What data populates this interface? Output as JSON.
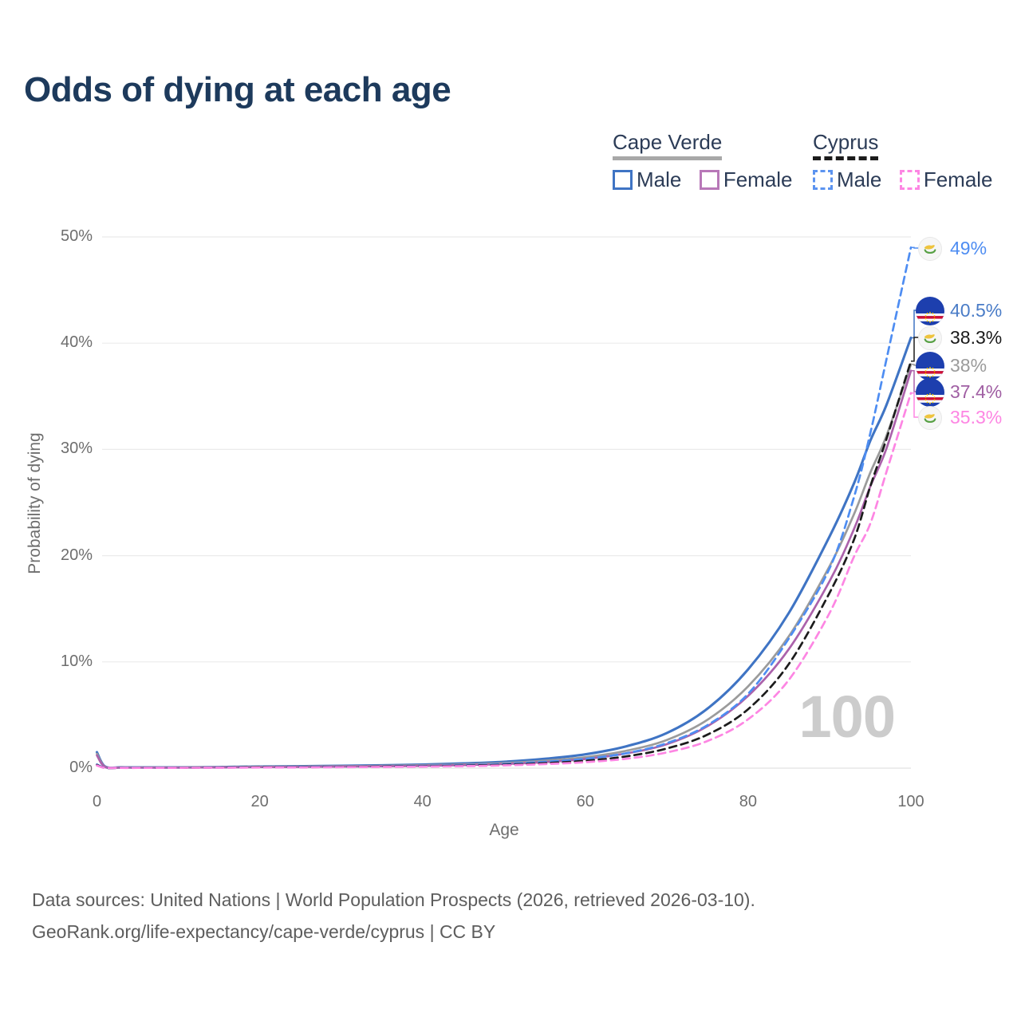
{
  "title": "Odds of dying at each age",
  "legend": {
    "groups": [
      {
        "country": "Cape Verde",
        "line_style": "solid",
        "underline_color": "#a8a8a8",
        "items": [
          {
            "label": "Male",
            "color": "#3f74c4"
          },
          {
            "label": "Female",
            "color": "#b878b8"
          }
        ]
      },
      {
        "country": "Cyprus",
        "line_style": "dashed",
        "underline_color": "#1c1c1c",
        "items": [
          {
            "label": "Male",
            "color": "#5b93f0"
          },
          {
            "label": "Female",
            "color": "#fd86e3"
          }
        ]
      }
    ]
  },
  "chart_data": {
    "type": "line",
    "title": "Odds of dying at each age",
    "xlabel": "Age",
    "ylabel": "Probability of dying",
    "xlim": [
      0,
      100
    ],
    "ylim": [
      0,
      50
    ],
    "xticks": [
      0,
      20,
      40,
      60,
      80,
      100
    ],
    "xtick_labels": [
      "0",
      "20",
      "40",
      "60",
      "80",
      "100"
    ],
    "ytick_labels": [
      "0%",
      "10%",
      "20%",
      "30%",
      "40%",
      "50%"
    ],
    "grid": "horizontal-light",
    "legend_position": "top-right",
    "watermark": "100",
    "ages": [
      0,
      1,
      3,
      5,
      10,
      15,
      20,
      25,
      30,
      35,
      40,
      45,
      50,
      55,
      60,
      65,
      70,
      75,
      80,
      85,
      90,
      93,
      95,
      97,
      100
    ],
    "series": [
      {
        "name": "Cape Verde Male",
        "country": "Cape Verde",
        "sex": "Male",
        "style": "solid",
        "color": "#3f74c4",
        "end_value_pct": 40.5,
        "values": [
          1.5,
          0.15,
          0.08,
          0.07,
          0.07,
          0.1,
          0.15,
          0.18,
          0.22,
          0.27,
          0.33,
          0.44,
          0.6,
          0.88,
          1.3,
          2.05,
          3.3,
          5.6,
          9.3,
          14.6,
          21.8,
          26.8,
          30.8,
          34.2,
          40.5
        ]
      },
      {
        "name": "Cape Verde Both sexes",
        "country": "Cape Verde",
        "sex": "Both",
        "style": "solid",
        "color": "#9b9b9b",
        "end_value_pct": 38,
        "values": [
          1.35,
          0.13,
          0.07,
          0.06,
          0.06,
          0.08,
          0.12,
          0.15,
          0.18,
          0.22,
          0.27,
          0.35,
          0.48,
          0.7,
          1.03,
          1.63,
          2.65,
          4.55,
          7.7,
          12.4,
          19.0,
          23.9,
          27.8,
          31.3,
          38.0
        ]
      },
      {
        "name": "Cape Verde Female",
        "country": "Cape Verde",
        "sex": "Female",
        "style": "solid",
        "color": "#ab62ab",
        "end_value_pct": 37.4,
        "values": [
          1.2,
          0.11,
          0.06,
          0.05,
          0.05,
          0.07,
          0.1,
          0.12,
          0.15,
          0.18,
          0.22,
          0.29,
          0.39,
          0.57,
          0.86,
          1.38,
          2.25,
          3.95,
          6.8,
          11.2,
          17.6,
          22.5,
          26.5,
          30.1,
          37.4
        ]
      },
      {
        "name": "Cyprus Male",
        "country": "Cyprus",
        "sex": "Male",
        "style": "dashed",
        "color": "#4e8df2",
        "end_value_pct": 49,
        "values": [
          0.35,
          0.04,
          0.03,
          0.03,
          0.04,
          0.06,
          0.09,
          0.11,
          0.13,
          0.16,
          0.21,
          0.28,
          0.4,
          0.59,
          0.88,
          1.4,
          2.35,
          4.05,
          7.0,
          12.2,
          18.8,
          25.5,
          31.5,
          38.5,
          49.0
        ]
      },
      {
        "name": "Cyprus Both sexes",
        "country": "Cyprus",
        "sex": "Both",
        "style": "dashed",
        "color": "#1c1c1c",
        "end_value_pct": 38.3,
        "values": [
          0.3,
          0.03,
          0.025,
          0.025,
          0.035,
          0.05,
          0.08,
          0.09,
          0.11,
          0.14,
          0.17,
          0.23,
          0.32,
          0.47,
          0.7,
          1.1,
          1.85,
          3.15,
          5.55,
          9.8,
          16.5,
          21.5,
          26.5,
          31.0,
          38.3
        ]
      },
      {
        "name": "Cyprus Female",
        "country": "Cyprus",
        "sex": "Female",
        "style": "dashed",
        "color": "#fd86e3",
        "end_value_pct": 35.3,
        "values": [
          0.25,
          0.03,
          0.02,
          0.02,
          0.03,
          0.04,
          0.06,
          0.07,
          0.09,
          0.11,
          0.14,
          0.19,
          0.26,
          0.38,
          0.56,
          0.88,
          1.48,
          2.55,
          4.6,
          8.3,
          14.6,
          19.9,
          23.0,
          27.9,
          35.3
        ]
      }
    ]
  },
  "end_labels": [
    {
      "text": "49%",
      "flag": "cyprus",
      "series": "Cyprus Male",
      "color": "#4e8df2"
    },
    {
      "text": "40.5%",
      "flag": "capeverde",
      "series": "Cape Verde Male",
      "color": "#4a7cc7"
    },
    {
      "text": "38.3%",
      "flag": "cyprus",
      "series": "Cyprus Both sexes",
      "color": "#1a1a1a"
    },
    {
      "text": "38%",
      "flag": "capeverde",
      "series": "Cape Verde Both sexes",
      "color": "#9b9b9b"
    },
    {
      "text": "37.4%",
      "flag": "capeverde",
      "series": "Cape Verde Female",
      "color": "#a05fa3"
    },
    {
      "text": "35.3%",
      "flag": "cyprus",
      "series": "Cyprus Female",
      "color": "#fd86e3"
    }
  ],
  "footer": {
    "line1": "Data sources: United Nations | World Population Prospects (2026, retrieved 2026-03-10).",
    "line2": "GeoRank.org/life-expectancy/cape-verde/cyprus | CC BY"
  }
}
